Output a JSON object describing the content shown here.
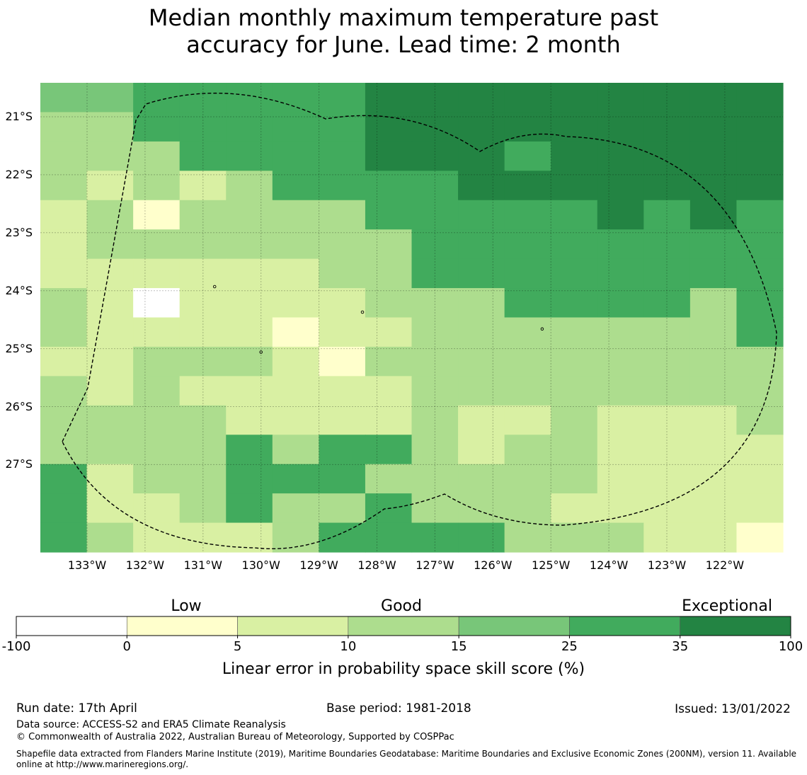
{
  "title": {
    "line1": "Median monthly maximum temperature past",
    "line2": "accuracy for June. Lead time: 2 month"
  },
  "map": {
    "lat_labels": [
      "21°S",
      "22°S",
      "23°S",
      "24°S",
      "25°S",
      "26°S",
      "27°S"
    ],
    "lon_labels": [
      "133°W",
      "132°W",
      "131°W",
      "130°W",
      "129°W",
      "128°W",
      "127°W",
      "126°W",
      "125°W",
      "124°W",
      "123°W",
      "122°W"
    ],
    "grid": [
      [
        15,
        15,
        25,
        25,
        25,
        25,
        25,
        35,
        35,
        35,
        35,
        35,
        35,
        35,
        35,
        35
      ],
      [
        10,
        10,
        25,
        25,
        25,
        25,
        25,
        35,
        35,
        35,
        35,
        35,
        35,
        35,
        35,
        35
      ],
      [
        10,
        10,
        10,
        25,
        25,
        25,
        25,
        35,
        35,
        35,
        25,
        35,
        35,
        35,
        35,
        35
      ],
      [
        10,
        5,
        10,
        5,
        10,
        25,
        25,
        25,
        25,
        35,
        35,
        35,
        35,
        35,
        35,
        35
      ],
      [
        5,
        10,
        0,
        10,
        10,
        10,
        10,
        25,
        25,
        25,
        25,
        25,
        35,
        25,
        35,
        25
      ],
      [
        5,
        10,
        10,
        10,
        10,
        10,
        10,
        10,
        25,
        25,
        25,
        25,
        25,
        25,
        25,
        25
      ],
      [
        5,
        5,
        5,
        5,
        5,
        5,
        10,
        10,
        25,
        25,
        25,
        25,
        25,
        25,
        25,
        25
      ],
      [
        10,
        5,
        -100,
        5,
        5,
        5,
        5,
        10,
        10,
        10,
        25,
        25,
        25,
        25,
        10,
        25
      ],
      [
        10,
        5,
        5,
        5,
        5,
        0,
        5,
        5,
        10,
        10,
        10,
        10,
        10,
        10,
        10,
        25
      ],
      [
        5,
        5,
        10,
        10,
        10,
        5,
        0,
        10,
        10,
        10,
        10,
        10,
        10,
        10,
        10,
        10
      ],
      [
        10,
        5,
        10,
        5,
        5,
        5,
        5,
        5,
        10,
        10,
        10,
        10,
        10,
        10,
        10,
        10
      ],
      [
        10,
        10,
        10,
        10,
        5,
        5,
        5,
        5,
        10,
        5,
        5,
        10,
        5,
        5,
        5,
        10
      ],
      [
        10,
        10,
        10,
        10,
        25,
        10,
        25,
        25,
        10,
        5,
        10,
        10,
        5,
        5,
        5,
        5
      ],
      [
        25,
        5,
        10,
        10,
        25,
        25,
        25,
        10,
        10,
        10,
        10,
        10,
        5,
        5,
        5,
        5
      ],
      [
        25,
        5,
        5,
        10,
        25,
        10,
        10,
        25,
        10,
        10,
        10,
        5,
        5,
        5,
        5,
        5
      ],
      [
        25,
        10,
        5,
        5,
        5,
        10,
        25,
        25,
        25,
        25,
        10,
        10,
        10,
        5,
        5,
        0
      ]
    ],
    "dot_marks": [
      [
        128.25,
        24.37
      ],
      [
        125.15,
        24.66
      ],
      [
        130.8,
        23.93
      ],
      [
        130.0,
        25.06
      ]
    ]
  },
  "colorbar": {
    "category_labels": [
      "Low",
      "Good",
      "Exceptional"
    ],
    "ticks": [
      "-100",
      "0",
      "5",
      "10",
      "15",
      "25",
      "35",
      "100"
    ],
    "colors": [
      "#ffffff",
      "#ffffcc",
      "#d9f0a3",
      "#addd8e",
      "#78c679",
      "#41ab5d",
      "#238443"
    ],
    "title": "Linear error in probability space skill score (%)"
  },
  "footer": {
    "run_date": "Run date: 17th April",
    "base_period": "Base period: 1981-2018",
    "issued": "Issued: 13/01/2022",
    "data_source": "Data source: ACCESS-S2 and ERA5 Climate Reanalysis",
    "copyright": "© Commonwealth of Australia 2022, Australian Bureau of Meteorology, Supported by COSPPac",
    "shapefile": "Shapefile data extracted from Flanders Marine Institute (2019), Maritime Boundaries Geodatabase: Maritime Boundaries and Exclusive Economic Zones (200NM), version 11. Available online at http://www.marineregions.org/."
  }
}
